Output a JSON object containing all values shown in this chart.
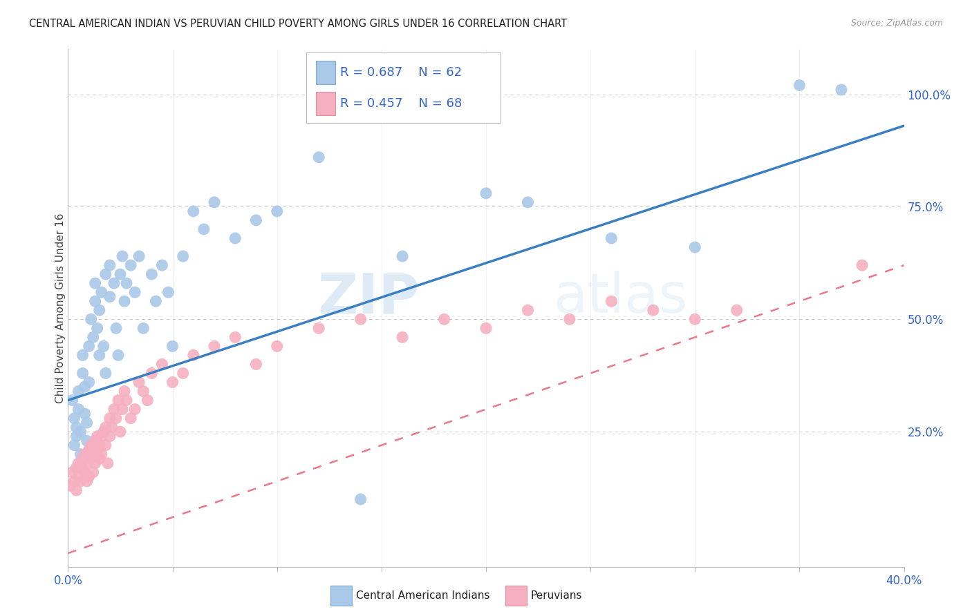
{
  "title": "CENTRAL AMERICAN INDIAN VS PERUVIAN CHILD POVERTY AMONG GIRLS UNDER 16 CORRELATION CHART",
  "source": "Source: ZipAtlas.com",
  "ylabel": "Child Poverty Among Girls Under 16",
  "xlim": [
    0.0,
    0.4
  ],
  "ylim": [
    -0.05,
    1.1
  ],
  "xticks": [
    0.0,
    0.05,
    0.1,
    0.15,
    0.2,
    0.25,
    0.3,
    0.35,
    0.4
  ],
  "yticks_right": [
    0.25,
    0.5,
    0.75,
    1.0
  ],
  "ytick_right_labels": [
    "25.0%",
    "50.0%",
    "75.0%",
    "100.0%"
  ],
  "blue_label": "Central American Indians",
  "pink_label": "Peruvians",
  "blue_R": "0.687",
  "blue_N": "62",
  "pink_R": "0.457",
  "pink_N": "68",
  "blue_color": "#aac8e8",
  "pink_color": "#f5afc0",
  "blue_line_color": "#3a7fc1",
  "pink_line_color": "#e8788a",
  "legend_text_color": "#3366cc",
  "watermark_zip": "ZIP",
  "watermark_atlas": "atlas",
  "background_color": "#ffffff",
  "grid_color": "#cccccc",
  "blue_scatter_x": [
    0.002,
    0.003,
    0.003,
    0.004,
    0.004,
    0.005,
    0.005,
    0.006,
    0.006,
    0.007,
    0.007,
    0.008,
    0.008,
    0.009,
    0.009,
    0.01,
    0.01,
    0.011,
    0.012,
    0.013,
    0.013,
    0.014,
    0.015,
    0.015,
    0.016,
    0.017,
    0.018,
    0.018,
    0.02,
    0.02,
    0.022,
    0.023,
    0.024,
    0.025,
    0.026,
    0.027,
    0.028,
    0.03,
    0.032,
    0.034,
    0.036,
    0.04,
    0.042,
    0.045,
    0.048,
    0.05,
    0.055,
    0.06,
    0.065,
    0.07,
    0.08,
    0.09,
    0.1,
    0.12,
    0.14,
    0.16,
    0.2,
    0.22,
    0.26,
    0.3,
    0.35,
    0.37
  ],
  "blue_scatter_y": [
    0.32,
    0.28,
    0.22,
    0.26,
    0.24,
    0.3,
    0.34,
    0.25,
    0.2,
    0.38,
    0.42,
    0.29,
    0.35,
    0.27,
    0.23,
    0.44,
    0.36,
    0.5,
    0.46,
    0.54,
    0.58,
    0.48,
    0.42,
    0.52,
    0.56,
    0.44,
    0.6,
    0.38,
    0.55,
    0.62,
    0.58,
    0.48,
    0.42,
    0.6,
    0.64,
    0.54,
    0.58,
    0.62,
    0.56,
    0.64,
    0.48,
    0.6,
    0.54,
    0.62,
    0.56,
    0.44,
    0.64,
    0.74,
    0.7,
    0.76,
    0.68,
    0.72,
    0.74,
    0.86,
    0.1,
    0.64,
    0.78,
    0.76,
    0.68,
    0.66,
    1.02,
    1.01
  ],
  "pink_scatter_x": [
    0.001,
    0.002,
    0.003,
    0.004,
    0.004,
    0.005,
    0.005,
    0.006,
    0.007,
    0.007,
    0.008,
    0.008,
    0.009,
    0.009,
    0.01,
    0.01,
    0.011,
    0.011,
    0.012,
    0.012,
    0.013,
    0.013,
    0.014,
    0.014,
    0.015,
    0.015,
    0.016,
    0.016,
    0.017,
    0.018,
    0.018,
    0.019,
    0.02,
    0.02,
    0.021,
    0.022,
    0.023,
    0.024,
    0.025,
    0.026,
    0.027,
    0.028,
    0.03,
    0.032,
    0.034,
    0.036,
    0.038,
    0.04,
    0.045,
    0.05,
    0.055,
    0.06,
    0.07,
    0.08,
    0.09,
    0.1,
    0.12,
    0.14,
    0.16,
    0.18,
    0.2,
    0.22,
    0.24,
    0.26,
    0.28,
    0.3,
    0.32,
    0.38
  ],
  "pink_scatter_y": [
    0.13,
    0.16,
    0.14,
    0.17,
    0.12,
    0.18,
    0.15,
    0.14,
    0.17,
    0.19,
    0.16,
    0.2,
    0.14,
    0.18,
    0.21,
    0.15,
    0.19,
    0.22,
    0.2,
    0.16,
    0.23,
    0.18,
    0.21,
    0.24,
    0.19,
    0.22,
    0.24,
    0.2,
    0.25,
    0.22,
    0.26,
    0.18,
    0.28,
    0.24,
    0.26,
    0.3,
    0.28,
    0.32,
    0.25,
    0.3,
    0.34,
    0.32,
    0.28,
    0.3,
    0.36,
    0.34,
    0.32,
    0.38,
    0.4,
    0.36,
    0.38,
    0.42,
    0.44,
    0.46,
    0.4,
    0.44,
    0.48,
    0.5,
    0.46,
    0.5,
    0.48,
    0.52,
    0.5,
    0.54,
    0.52,
    0.5,
    0.52,
    0.62
  ],
  "blue_line_x": [
    0.0,
    0.4
  ],
  "blue_line_y": [
    0.32,
    0.93
  ],
  "pink_line_x": [
    0.0,
    0.4
  ],
  "pink_line_y": [
    -0.02,
    0.62
  ]
}
